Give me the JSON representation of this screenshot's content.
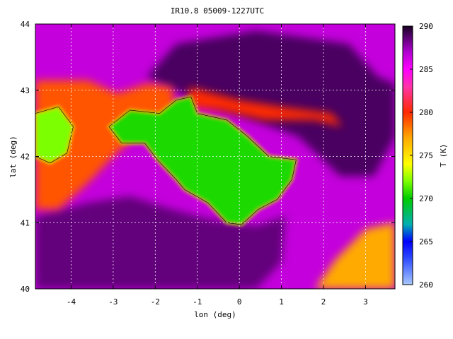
{
  "chart_data": {
    "type": "heatmap",
    "title": "IR10.8 05009-1227UTC",
    "xlabel": "lon (deg)",
    "ylabel": "lat (deg)",
    "xlim": [
      -4.85,
      3.7
    ],
    "ylim": [
      40,
      44
    ],
    "xticks": [
      -4,
      -3,
      -2,
      -1,
      0,
      1,
      2,
      3
    ],
    "yticks": [
      40,
      41,
      42,
      43,
      44
    ],
    "grid": true,
    "colorbar": {
      "label": "T (K)",
      "range": [
        260,
        290
      ],
      "ticks": [
        260,
        265,
        270,
        275,
        280,
        285,
        290
      ],
      "stops": [
        {
          "value": 260,
          "color": "#a8c8ff"
        },
        {
          "value": 263,
          "color": "#2e4cff"
        },
        {
          "value": 265,
          "color": "#0000ff"
        },
        {
          "value": 267,
          "color": "#00b0b0"
        },
        {
          "value": 270,
          "color": "#00cc00"
        },
        {
          "value": 272,
          "color": "#7cff00"
        },
        {
          "value": 274,
          "color": "#ffff00"
        },
        {
          "value": 277,
          "color": "#ffaa00"
        },
        {
          "value": 280,
          "color": "#ff2a00"
        },
        {
          "value": 283,
          "color": "#ff33aa"
        },
        {
          "value": 285,
          "color": "#ff00ff"
        },
        {
          "value": 287,
          "color": "#b000d0"
        },
        {
          "value": 289,
          "color": "#4a0060"
        },
        {
          "value": 290,
          "color": "#180020"
        }
      ]
    },
    "features": [
      {
        "name": "background",
        "temperature": 286.5
      },
      {
        "name": "ebro-basin-cold-plateau",
        "temperature": 270.5,
        "outline_lon_lat": [
          [
            -3.1,
            42.45
          ],
          [
            -2.6,
            42.7
          ],
          [
            -1.9,
            42.65
          ],
          [
            -1.5,
            42.85
          ],
          [
            -1.15,
            42.9
          ],
          [
            -1.0,
            42.65
          ],
          [
            -0.3,
            42.55
          ],
          [
            0.2,
            42.3
          ],
          [
            0.7,
            42.0
          ],
          [
            1.35,
            41.95
          ],
          [
            1.25,
            41.65
          ],
          [
            0.9,
            41.35
          ],
          [
            0.45,
            41.2
          ],
          [
            0.05,
            40.97
          ],
          [
            -0.3,
            41.0
          ],
          [
            -0.75,
            41.3
          ],
          [
            -1.3,
            41.5
          ],
          [
            -1.5,
            41.65
          ],
          [
            -1.95,
            41.95
          ],
          [
            -2.25,
            42.2
          ],
          [
            -2.8,
            42.2
          ]
        ]
      },
      {
        "name": "western-cold-patch",
        "temperature": 272,
        "outline_lon_lat": [
          [
            -4.85,
            42.65
          ],
          [
            -4.3,
            42.75
          ],
          [
            -3.95,
            42.45
          ],
          [
            -4.1,
            42.05
          ],
          [
            -4.5,
            41.9
          ],
          [
            -4.85,
            42.0
          ]
        ]
      },
      {
        "name": "western-warm-band",
        "temperature": 279,
        "outline_lon_lat": [
          [
            -4.85,
            43.15
          ],
          [
            -3.6,
            43.15
          ],
          [
            -2.9,
            42.95
          ],
          [
            -2.2,
            43.1
          ],
          [
            -1.6,
            43.05
          ],
          [
            -1.5,
            42.6
          ],
          [
            -2.4,
            42.35
          ],
          [
            -3.0,
            42.0
          ],
          [
            -3.6,
            41.6
          ],
          [
            -4.3,
            41.2
          ],
          [
            -4.85,
            41.2
          ]
        ]
      },
      {
        "name": "pyrenees-warm-band",
        "temperature": 280,
        "outline_lon_lat": [
          [
            -1.2,
            43.05
          ],
          [
            0.0,
            42.85
          ],
          [
            1.0,
            42.75
          ],
          [
            2.2,
            42.65
          ],
          [
            2.45,
            42.45
          ],
          [
            1.8,
            42.55
          ],
          [
            0.6,
            42.55
          ],
          [
            -0.5,
            42.7
          ],
          [
            -1.2,
            42.75
          ]
        ]
      },
      {
        "name": "northern-dark-band",
        "temperature": 289,
        "outline_lon_lat": [
          [
            -1.5,
            43.7
          ],
          [
            0.4,
            43.9
          ],
          [
            2.6,
            43.7
          ],
          [
            3.3,
            43.2
          ],
          [
            3.7,
            43.1
          ],
          [
            3.7,
            42.3
          ],
          [
            3.2,
            41.7
          ],
          [
            2.4,
            41.7
          ],
          [
            1.4,
            42.3
          ],
          [
            0.1,
            42.6
          ],
          [
            -1.2,
            42.9
          ],
          [
            -2.2,
            43.2
          ]
        ]
      },
      {
        "name": "central-dark-region",
        "temperature": 288.5,
        "outline_lon_lat": [
          [
            -4.85,
            41.1
          ],
          [
            -3.6,
            41.3
          ],
          [
            -2.6,
            41.4
          ],
          [
            -1.6,
            41.2
          ],
          [
            -0.7,
            41.05
          ],
          [
            0.4,
            40.95
          ],
          [
            1.1,
            41.1
          ],
          [
            1.0,
            40.4
          ],
          [
            0.4,
            40.0
          ],
          [
            -4.85,
            40.0
          ]
        ]
      },
      {
        "name": "southeast-warm-region",
        "temperature": 277,
        "outline_lon_lat": [
          [
            1.8,
            40.0
          ],
          [
            2.3,
            40.45
          ],
          [
            3.0,
            40.9
          ],
          [
            3.7,
            41.0
          ],
          [
            3.7,
            40.0
          ]
        ]
      }
    ]
  }
}
